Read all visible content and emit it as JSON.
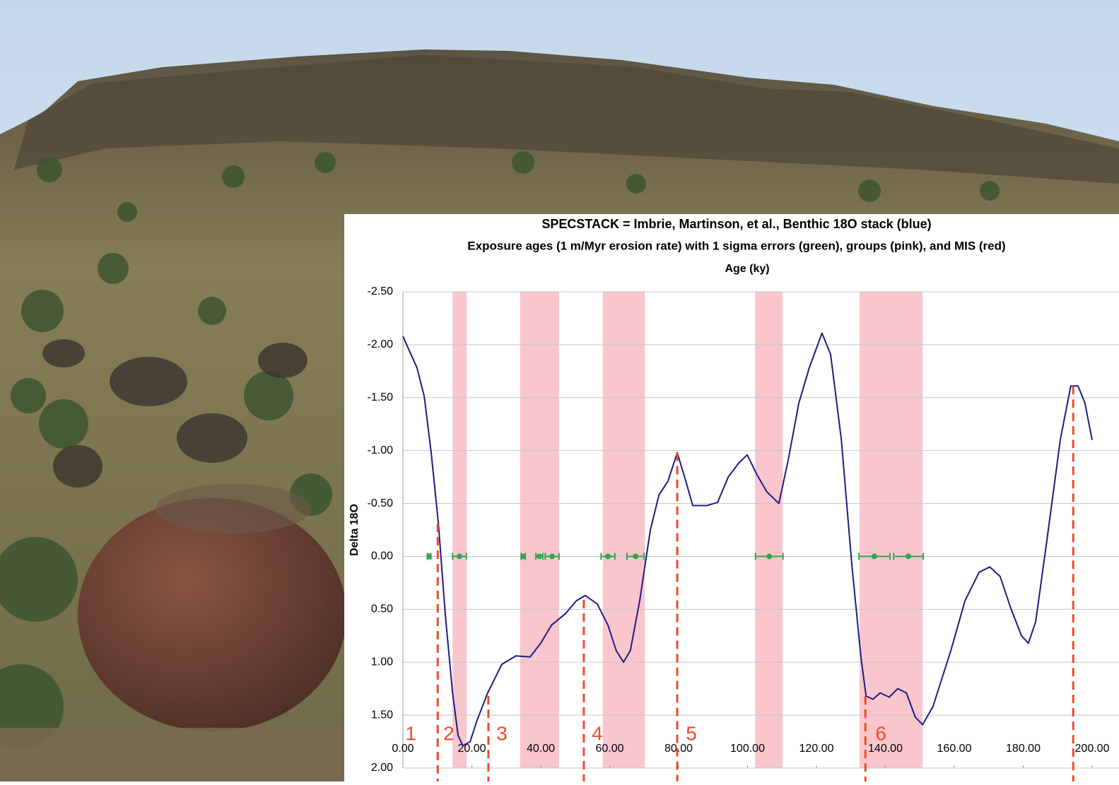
{
  "chart_data": {
    "type": "line",
    "title": "SPECSTACK = Imbrie, Martinson, et al., Benthic 18O stack (blue)",
    "subtitle": "Exposure ages (1 m/Myr erosion rate) with 1 sigma errors (green), groups (pink), and MIS (red)",
    "x_label": "Age (ky)",
    "y_label": "Delta 18O",
    "xlim": [
      0,
      200
    ],
    "ylim": [
      -2.5,
      2.0
    ],
    "xticks": [
      {
        "value": 0,
        "label": "0.00"
      },
      {
        "value": 20,
        "label": "20.00"
      },
      {
        "value": 40,
        "label": "40.00"
      },
      {
        "value": 60,
        "label": "60.00"
      },
      {
        "value": 80,
        "label": "80.00"
      },
      {
        "value": 100,
        "label": "100.00"
      },
      {
        "value": 120,
        "label": "120.00"
      },
      {
        "value": 140,
        "label": "140.00"
      },
      {
        "value": 160,
        "label": "160.00"
      },
      {
        "value": 180,
        "label": "180.00"
      },
      {
        "value": 200,
        "label": "200.00"
      }
    ],
    "yticks": [
      {
        "value": -2.5,
        "label": "-2.50"
      },
      {
        "value": -2.0,
        "label": "-2.00"
      },
      {
        "value": -1.5,
        "label": "-1.50"
      },
      {
        "value": -1.0,
        "label": "-1.00"
      },
      {
        "value": -0.5,
        "label": "-0.50"
      },
      {
        "value": 0,
        "label": "0.00"
      },
      {
        "value": 0.5,
        "label": "0.50"
      },
      {
        "value": 1.0,
        "label": "1.00"
      },
      {
        "value": 1.5,
        "label": "1.50"
      },
      {
        "value": 2.0,
        "label": "2.00"
      }
    ],
    "grid": true,
    "x": [
      0,
      4.1,
      6.2,
      8.2,
      10.3,
      12.3,
      14.4,
      16,
      17.4,
      19.5,
      21.5,
      24.6,
      28.7,
      32.8,
      36.9,
      40,
      43.1,
      47.2,
      50.3,
      52.9,
      56.4,
      59.5,
      61.9,
      64,
      66,
      68.7,
      71.8,
      74.3,
      76.9,
      79.6,
      82.1,
      84.1,
      88.2,
      91.3,
      94.4,
      97.4,
      99.9,
      102.6,
      105.6,
      109.1,
      111.8,
      114.9,
      117.9,
      121.6,
      124.1,
      127.2,
      130.3,
      132.9,
      134.4,
      136.4,
      138.5,
      141.1,
      143.6,
      146.1,
      148.7,
      150.8,
      153.8,
      159,
      163.1,
      167.2,
      170.3,
      173.3,
      176.4,
      179.5,
      181.5,
      183.6,
      186.7,
      190.8,
      193.8,
      195.9,
      197.9,
      200
    ],
    "series": [
      {
        "color": "#1c1c84",
        "values": [
          -2.08,
          -1.78,
          -1.51,
          -0.98,
          -0.31,
          0.55,
          1.29,
          1.69,
          1.79,
          1.75,
          1.55,
          1.29,
          1.02,
          0.94,
          0.95,
          0.82,
          0.65,
          0.54,
          0.42,
          0.37,
          0.45,
          0.65,
          0.89,
          1.0,
          0.89,
          0.42,
          -0.25,
          -0.58,
          -0.71,
          -0.98,
          -0.71,
          -0.48,
          -0.48,
          -0.51,
          -0.75,
          -0.88,
          -0.96,
          -0.78,
          -0.61,
          -0.5,
          -0.91,
          -1.45,
          -1.78,
          -2.11,
          -1.91,
          -1.11,
          0.09,
          0.95,
          1.32,
          1.35,
          1.29,
          1.33,
          1.25,
          1.29,
          1.52,
          1.59,
          1.42,
          0.89,
          0.42,
          0.15,
          0.1,
          0.19,
          0.49,
          0.75,
          0.82,
          0.62,
          -0.11,
          -1.11,
          -1.61,
          -1.61,
          -1.45,
          -1.1
        ]
      }
    ],
    "groups": {
      "color": "#f9c6cd",
      "ranges": [
        [
          14.4,
          18.5
        ],
        [
          34,
          45.3
        ],
        [
          58,
          70.2
        ],
        [
          102.2,
          110.2
        ],
        [
          132.5,
          150.8
        ]
      ]
    },
    "exposure_ages": {
      "color": "#2fa84f",
      "x": [
        7.6,
        16.4,
        34.9,
        39.6,
        43.3,
        59.5,
        67.5,
        106.3,
        136.8,
        146.7
      ],
      "errors": [
        0.5,
        2,
        0.6,
        1,
        2,
        2,
        2.5,
        4,
        4.5,
        4.3
      ],
      "values": [
        0,
        0,
        0,
        0,
        0,
        0,
        0,
        0,
        0,
        0
      ]
    },
    "mis": {
      "color": "#f04a2a",
      "boundary_x": [
        10.1,
        24.8,
        52.5,
        79.6,
        134.2,
        194.5
      ],
      "boundary_top": [
        -0.31,
        1.32,
        0.41,
        -0.98,
        1.32,
        -1.61
      ],
      "labels": [
        "1",
        "2",
        "3",
        "4",
        "5",
        "6"
      ],
      "label_x": [
        2.3,
        13.3,
        28.7,
        56.4,
        83.7,
        138.7
      ]
    }
  }
}
